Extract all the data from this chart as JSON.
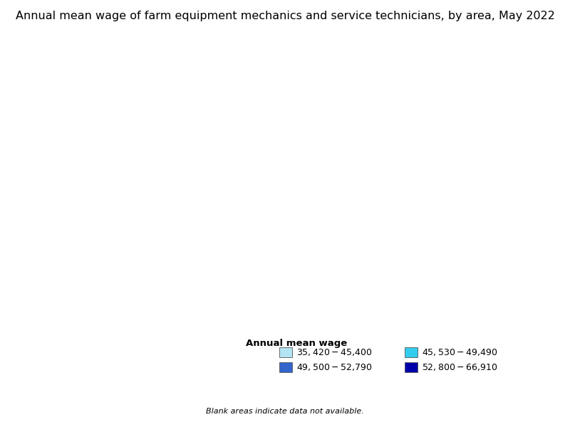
{
  "title": "Annual mean wage of farm equipment mechanics and service technicians, by area, May 2022",
  "legend_title": "Annual mean wage",
  "legend_items": [
    {
      "label": "$35,420 - $45,400",
      "color": "#b3e5f5"
    },
    {
      "label": "$45,530 - $49,490",
      "color": "#33ccee"
    },
    {
      "label": "$49,500 - $52,790",
      "color": "#3366cc"
    },
    {
      "label": "$52,800 - $66,910",
      "color": "#0000aa"
    }
  ],
  "blank_note": "Blank areas indicate data not available.",
  "background_color": "#ffffff",
  "title_fontsize": 11.5,
  "legend_fontsize": 9
}
